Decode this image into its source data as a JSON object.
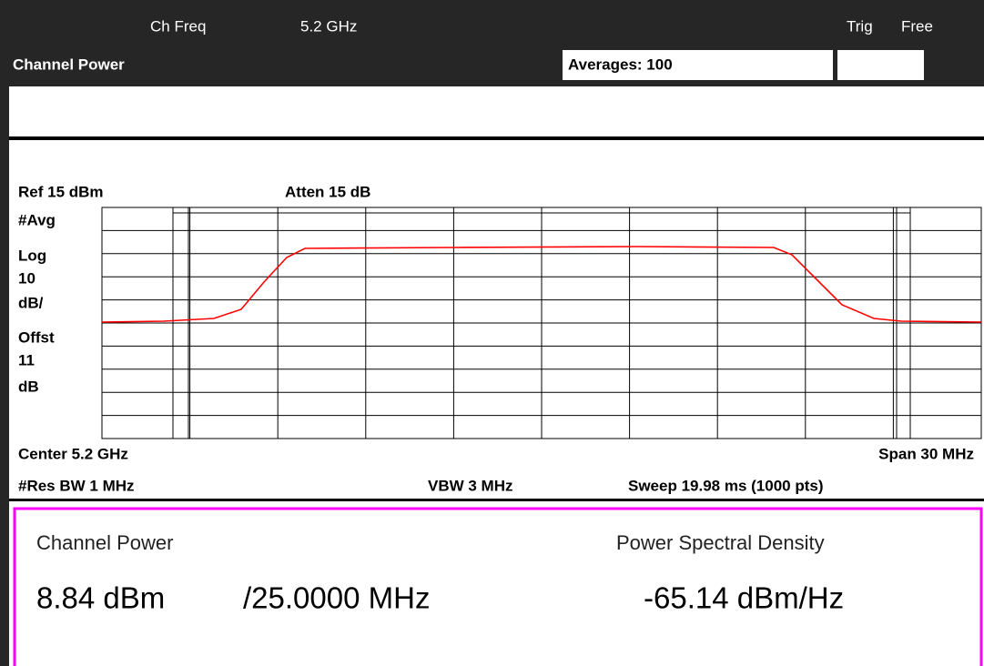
{
  "header": {
    "ch_freq_label": "Ch Freq",
    "ch_freq_value": "5.2 GHz",
    "trig_label": "Trig",
    "trig_value": "Free",
    "mode": "Channel Power",
    "averages": "Averages: 100"
  },
  "display": {
    "ref": "Ref 15 dBm",
    "atten": "Atten 15 dB",
    "left_labels": [
      "#Avg",
      "Log",
      "10",
      "dB/",
      "Offst",
      "11",
      "dB"
    ],
    "center": "Center 5.2 GHz",
    "span": "Span 30 MHz",
    "res_bw": "#Res BW 1 MHz",
    "vbw": "VBW 3 MHz",
    "sweep": "Sweep 19.98 ms (1000 pts)"
  },
  "results": {
    "channel_power_label": "Channel Power",
    "psd_label": "Power Spectral Density",
    "channel_power": "8.84 dBm",
    "bandwidth": "/25.0000 MHz",
    "psd": "-65.14 dBm/Hz"
  }
}
